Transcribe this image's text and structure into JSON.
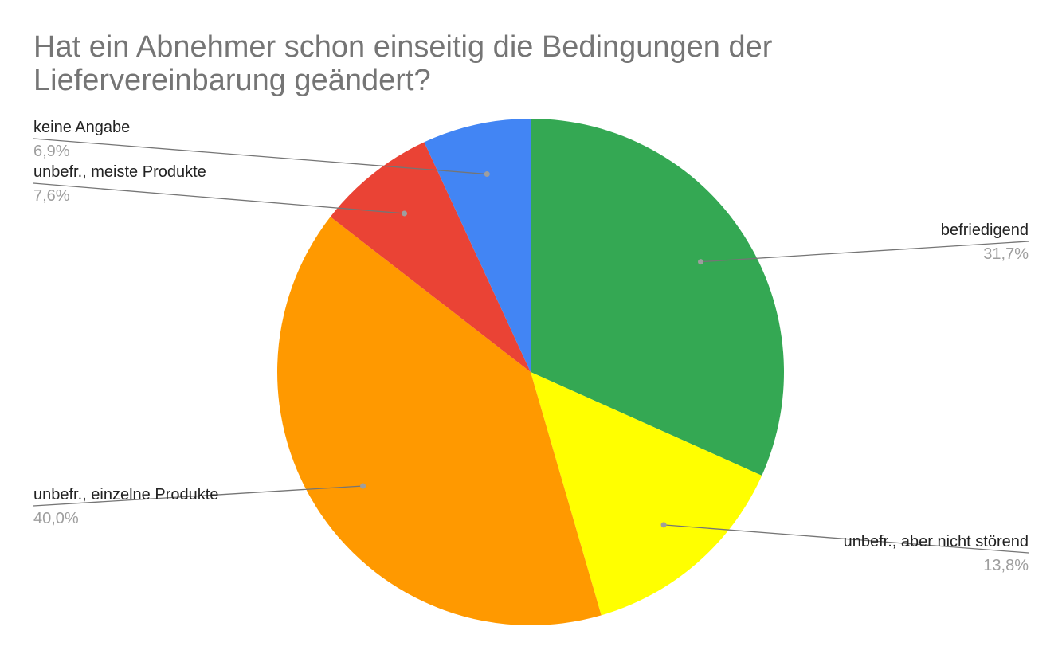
{
  "chart_data": {
    "type": "pie",
    "title": "Hat ein Abnehmer schon einseitig die Bedingungen der Liefervereinbarung geändert?",
    "start_angle_deg": 0,
    "direction": "clockwise",
    "slices": [
      {
        "label": "befriedigend",
        "value": 31.7,
        "value_label": "31,7%",
        "color": "#34a853"
      },
      {
        "label": "unbefr., aber nicht störend",
        "value": 13.8,
        "value_label": "13,8%",
        "color": "#ffff00"
      },
      {
        "label": "unbefr., einzelne Produkte",
        "value": 40.0,
        "value_label": "40,0%",
        "color": "#ff9900"
      },
      {
        "label": "unbefr., meiste Produkte",
        "value": 7.6,
        "value_label": "7,6%",
        "color": "#ea4335"
      },
      {
        "label": "keine Angabe",
        "value": 6.9,
        "value_label": "6,9%",
        "color": "#4285f4"
      }
    ],
    "label_color": "#222222",
    "value_label_color": "#9e9e9e",
    "leader_color": "#757575"
  }
}
